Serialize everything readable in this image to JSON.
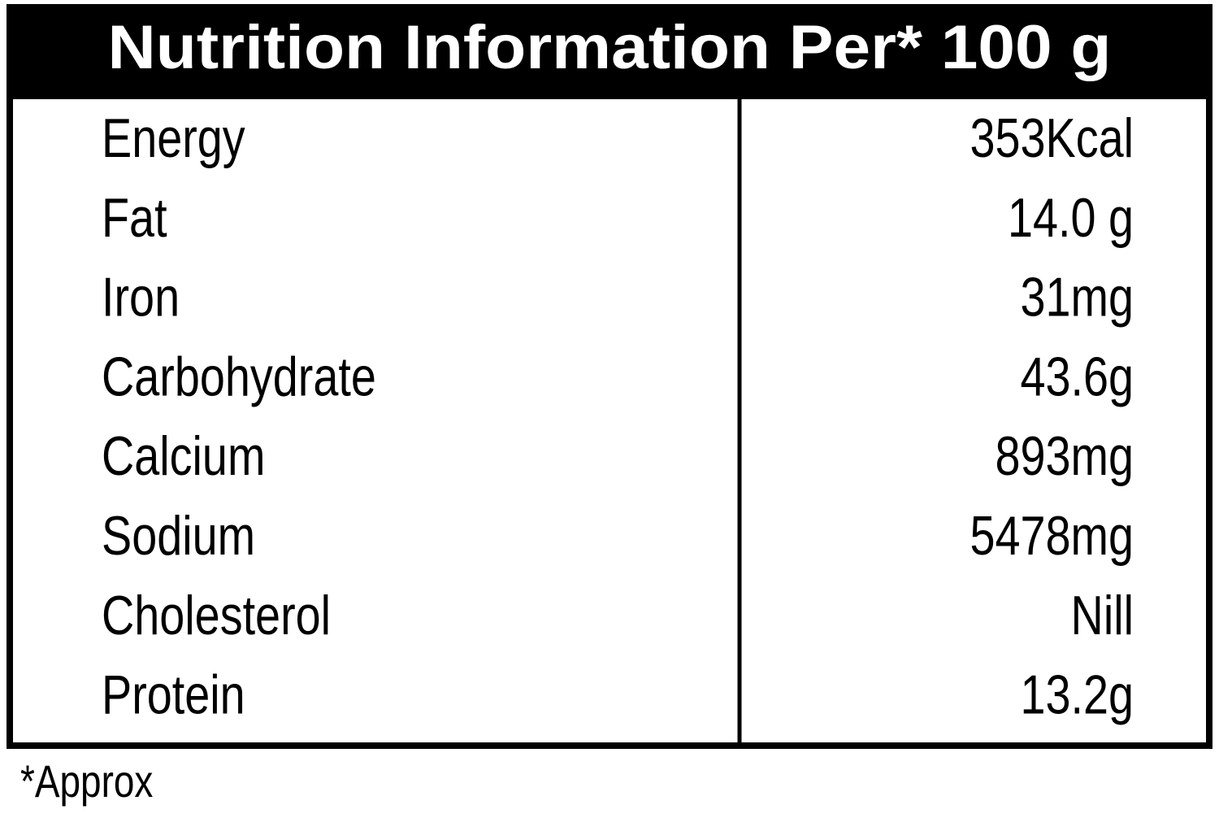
{
  "header": {
    "title": "Nutrition Information Per* 100 g"
  },
  "table": {
    "rows": [
      [
        "Energy",
        "353Kcal"
      ],
      [
        "Fat",
        "14.0 g"
      ],
      [
        "Iron",
        "31mg"
      ],
      [
        "Carbohydrate",
        "43.6g"
      ],
      [
        "Calcium",
        "893mg"
      ],
      [
        "Sodium",
        "5478mg"
      ],
      [
        "Cholesterol",
        "Nill"
      ],
      [
        "Protein",
        "13.2g"
      ]
    ]
  },
  "footnote": "*Approx"
}
